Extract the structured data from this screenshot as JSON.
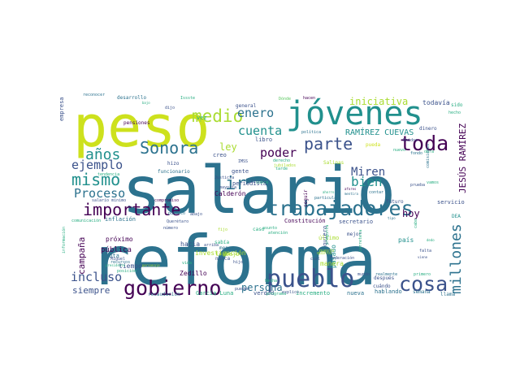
{
  "palette": {
    "c1": "#440154",
    "c2": "#3b528b",
    "c3": "#2c728e",
    "c4": "#21908d",
    "c5": "#27ad81",
    "c6": "#5dc863",
    "c7": "#aadc32",
    "c8": "#cde11d"
  },
  "words": [
    {
      "text": "reforma",
      "color": "c3"
    },
    {
      "text": "salario",
      "color": "c3"
    },
    {
      "text": "peso",
      "color": "c8"
    },
    {
      "text": "jóvenes",
      "color": "c4"
    },
    {
      "text": "pueblo",
      "color": "c2"
    },
    {
      "text": "gobierno",
      "color": "c1"
    },
    {
      "text": "trabajadores",
      "color": "c3"
    },
    {
      "text": "importante",
      "color": "c1"
    },
    {
      "text": "Sonora",
      "color": "c3"
    },
    {
      "text": "medio",
      "color": "c7"
    },
    {
      "text": "toda",
      "color": "c1"
    },
    {
      "text": "parte",
      "color": "c2"
    },
    {
      "text": "años",
      "color": "c4"
    },
    {
      "text": "cosa",
      "color": "c2"
    },
    {
      "text": "mismo",
      "color": "c4"
    },
    {
      "text": "millones",
      "color": "c3"
    },
    {
      "text": "ejemplo",
      "color": "c2"
    },
    {
      "text": "poder",
      "color": "c1"
    },
    {
      "text": "Proceso",
      "color": "c3"
    },
    {
      "text": "bien",
      "color": "c4"
    },
    {
      "text": "incluso",
      "color": "c2"
    },
    {
      "text": "cuenta",
      "color": "c4"
    },
    {
      "text": "iniciativa",
      "color": "c7"
    },
    {
      "text": "enero",
      "color": "c3"
    },
    {
      "text": "Miren",
      "color": "c2"
    },
    {
      "text": "hoy",
      "color": "c1"
    },
    {
      "text": "ir",
      "color": "c3"
    },
    {
      "text": "ley",
      "color": "c7"
    },
    {
      "text": "persona",
      "color": "c3"
    },
    {
      "text": "siempre",
      "color": "c2"
    },
    {
      "text": "campaña",
      "color": "c1"
    },
    {
      "text": "JESÚS RAMÍREZ",
      "color": "c1"
    },
    {
      "text": "RAMÍREZ CUEVAS",
      "color": "c4"
    },
    {
      "text": "todavía",
      "color": "c2"
    },
    {
      "text": "empresa",
      "color": "c2"
    },
    {
      "text": "vez",
      "color": "c5"
    },
    {
      "text": "pensiones",
      "color": "c1"
    },
    {
      "text": "general",
      "color": "c2"
    },
    {
      "text": "dinero",
      "color": "c2"
    },
    {
      "text": "sido",
      "color": "c5"
    },
    {
      "text": "libro",
      "color": "c2"
    },
    {
      "text": "hizo",
      "color": "c2"
    },
    {
      "text": "creo",
      "color": "c2"
    },
    {
      "text": "gente",
      "color": "c2"
    },
    {
      "text": "Calderón",
      "color": "c1"
    },
    {
      "text": "periodista",
      "color": "c2"
    },
    {
      "text": "Constitución",
      "color": "c1"
    },
    {
      "text": "secretario",
      "color": "c2"
    },
    {
      "text": "futuro",
      "color": "c2"
    },
    {
      "text": "servicio",
      "color": "c2"
    },
    {
      "text": "DEA",
      "color": "c4"
    },
    {
      "text": "país",
      "color": "c4"
    },
    {
      "text": "pasado",
      "color": "c4"
    },
    {
      "text": "manera",
      "color": "c7"
    },
    {
      "text": "hacia",
      "color": "c2"
    },
    {
      "text": "pública",
      "color": "c1"
    },
    {
      "text": "tiempo",
      "color": "c2"
    },
    {
      "text": "nota",
      "color": "c3"
    },
    {
      "text": "investigación",
      "color": "c7"
    },
    {
      "text": "trabajo",
      "color": "c7"
    },
    {
      "text": "próximo",
      "color": "c1"
    },
    {
      "text": "Zedillo",
      "color": "c1"
    },
    {
      "text": "García Luna",
      "color": "c5"
    },
    {
      "text": "recaudación",
      "color": "c3"
    },
    {
      "text": "incremento",
      "color": "c5"
    },
    {
      "text": "verdad",
      "color": "c2"
    },
    {
      "text": "nueva",
      "color": "c3"
    },
    {
      "text": "hablando",
      "color": "c3"
    },
    {
      "text": "semana",
      "color": "c3"
    },
    {
      "text": "cuándo",
      "color": "c2"
    },
    {
      "text": "después",
      "color": "c2"
    },
    {
      "text": "primero",
      "color": "c5"
    },
    {
      "text": "llama",
      "color": "c3"
    },
    {
      "text": "inflación",
      "color": "c3"
    },
    {
      "text": "salario mínimo",
      "color": "c2"
    },
    {
      "text": "compromiso",
      "color": "c1"
    },
    {
      "text": "Justicia",
      "color": "c2"
    },
    {
      "text": "mayoría",
      "color": "c2"
    },
    {
      "text": "funcionario",
      "color": "c3"
    },
    {
      "text": "tendencia",
      "color": "c5"
    },
    {
      "text": "desarrollo",
      "color": "c3"
    },
    {
      "text": "reconocer",
      "color": "c3"
    },
    {
      "text": "Issste",
      "color": "c5"
    },
    {
      "text": "Dónde",
      "color": "c6"
    },
    {
      "text": "hacen",
      "color": "c1"
    },
    {
      "text": "dijo",
      "color": "c2"
    },
    {
      "text": "bajo",
      "color": "c5"
    },
    {
      "text": "política",
      "color": "c3"
    },
    {
      "text": "pueda",
      "color": "c8"
    },
    {
      "text": "Unidos",
      "color": "c2"
    },
    {
      "text": "hecho",
      "color": "c5"
    },
    {
      "text": "nuevo",
      "color": "c5"
    },
    {
      "text": "fondo",
      "color": "c3"
    },
    {
      "text": "Salinas",
      "color": "c7"
    },
    {
      "text": "comisiones",
      "color": "c3"
    },
    {
      "text": "vamos",
      "color": "c5"
    },
    {
      "text": "IMSS",
      "color": "c2"
    },
    {
      "text": "seguir",
      "color": "c1"
    },
    {
      "text": "quiero",
      "color": "c2"
    },
    {
      "text": "mejor",
      "color": "c2"
    },
    {
      "text": "contar",
      "color": "c3"
    },
    {
      "text": "mentira",
      "color": "c3"
    },
    {
      "text": "afores",
      "color": "c1"
    },
    {
      "text": "particular",
      "color": "c3"
    },
    {
      "text": "último",
      "color": "c7"
    },
    {
      "text": "cabo",
      "color": "c5"
    },
    {
      "text": "dedo",
      "color": "c5"
    },
    {
      "text": "falta",
      "color": "c2"
    },
    {
      "text": "viene",
      "color": "c2"
    },
    {
      "text": "realmente",
      "color": "c3"
    },
    {
      "text": "mundo",
      "color": "c2"
    },
    {
      "text": "pueden",
      "color": "c2"
    },
    {
      "text": "programa",
      "color": "c5"
    },
    {
      "text": "sabía",
      "color": "c5"
    },
    {
      "text": "menos",
      "color": "c3"
    },
    {
      "text": "arriba",
      "color": "c2"
    },
    {
      "text": "nunca",
      "color": "c2"
    },
    {
      "text": "Ciudad",
      "color": "c2"
    },
    {
      "text": "vida",
      "color": "c5"
    },
    {
      "text": "hijo",
      "color": "c2"
    },
    {
      "text": "abajo",
      "color": "c2"
    },
    {
      "text": "fijo",
      "color": "c7"
    },
    {
      "text": "atención",
      "color": "c5"
    },
    {
      "text": "comunicación",
      "color": "c5"
    },
    {
      "text": "información",
      "color": "c5"
    },
    {
      "text": "Querétaro",
      "color": "c2"
    },
    {
      "text": "Miguel",
      "color": "c2"
    },
    {
      "text": "cobra",
      "color": "c5"
    },
    {
      "text": "puesto",
      "color": "c7"
    },
    {
      "text": "explico",
      "color": "c2"
    },
    {
      "text": "número",
      "color": "c2"
    },
    {
      "text": "recursos",
      "color": "c3"
    },
    {
      "text": "posición",
      "color": "c5"
    },
    {
      "text": "presidente",
      "color": "c5"
    },
    {
      "text": "personaje",
      "color": "c7"
    },
    {
      "text": "pregunta",
      "color": "c5"
    },
    {
      "text": "cuál",
      "color": "c2"
    },
    {
      "text": "asunto",
      "color": "c5"
    },
    {
      "text": "público",
      "color": "c3"
    },
    {
      "text": "prueba",
      "color": "c2"
    },
    {
      "text": "ahorro",
      "color": "c5"
    },
    {
      "text": "derecho",
      "color": "c5"
    },
    {
      "text": "jubilados",
      "color": "c7"
    },
    {
      "text": "tipo",
      "color": "c3"
    },
    {
      "text": "caso",
      "color": "c5"
    },
    {
      "text": "obra",
      "color": "c5"
    },
    {
      "text": "Federación",
      "color": "c2"
    },
    {
      "text": "quinto",
      "color": "c7"
    },
    {
      "text": "carretera",
      "color": "c5"
    },
    {
      "text": "hecha",
      "color": "c5"
    },
    {
      "text": "tarde",
      "color": "c5"
    }
  ]
}
